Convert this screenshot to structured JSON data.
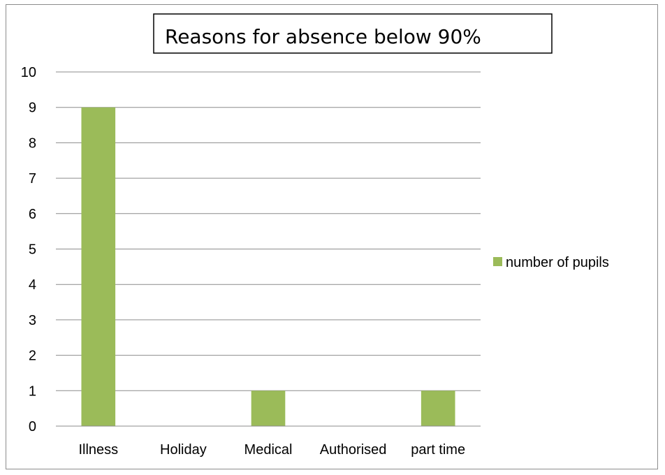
{
  "chart_data": {
    "type": "bar",
    "title": "Reasons for absence below 90%",
    "categories": [
      "Illness",
      "Holiday",
      "Medical",
      "Authorised",
      "part time"
    ],
    "series": [
      {
        "name": "number of pupils",
        "values": [
          9,
          0,
          1,
          0,
          1
        ],
        "color": "#9bbb59"
      }
    ],
    "ylim": [
      0,
      10
    ],
    "yticks": [
      "0",
      "1",
      "2",
      "3",
      "4",
      "5",
      "6",
      "7",
      "8",
      "9",
      "10"
    ],
    "grid": true,
    "legend_position": "right",
    "colors": {
      "gridline": "#8c8c8c",
      "axis": "#8c8c8c",
      "frame": "#8c8c8c"
    }
  }
}
